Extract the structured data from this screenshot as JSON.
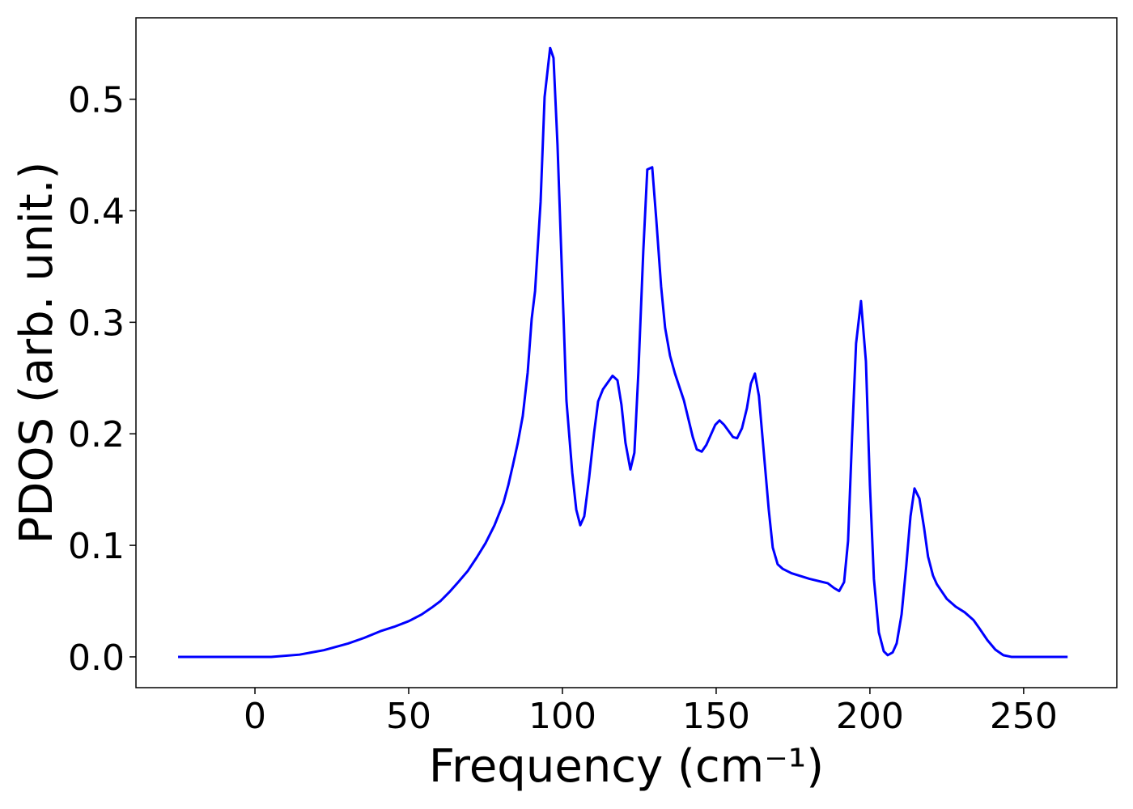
{
  "chart_data": {
    "type": "line",
    "xlabel": "Frequency (cm⁻¹)",
    "ylabel": "PDOS (arb. unit.)",
    "x": [
      -25,
      0,
      5.3,
      14.5,
      22.4,
      30.3,
      35.5,
      40.8,
      45.3,
      50,
      54.2,
      57.4,
      60.3,
      63.2,
      66.1,
      69.2,
      72.1,
      75,
      77.9,
      80.8,
      82.4,
      83.9,
      85.5,
      87.1,
      88.7,
      90,
      91.1,
      92.9,
      94.2,
      96.0,
      97.1,
      98.4,
      101.3,
      103.2,
      104.5,
      105.8,
      107.1,
      108.7,
      110.3,
      111.6,
      113.2,
      116.3,
      117.9,
      119.2,
      120.5,
      122.1,
      123.4,
      124.7,
      126.3,
      127.6,
      129.2,
      130.5,
      132.1,
      133.4,
      135,
      136.6,
      139.5,
      142.4,
      143.7,
      145.3,
      146.8,
      149.7,
      151.1,
      152.6,
      155.5,
      156.8,
      158.4,
      160,
      161.3,
      162.6,
      163.9,
      165.5,
      167.1,
      168.4,
      170,
      171.6,
      174.5,
      180.3,
      186.3,
      188.2,
      190,
      191.6,
      192.9,
      194.2,
      195.5,
      197.1,
      198.7,
      200,
      201.3,
      202.9,
      204.5,
      205.8,
      207.4,
      208.7,
      210.3,
      211.8,
      213.2,
      214.5,
      216.1,
      217.6,
      218.9,
      220.5,
      221.8,
      225,
      227.9,
      230.8,
      233.7,
      235.5,
      238.2,
      240.8,
      243.4,
      246,
      264.3
    ],
    "series": [
      {
        "name": "PDOS",
        "color": "#0000ff",
        "values": [
          0,
          0,
          0,
          0.002,
          0.006,
          0.012,
          0.017,
          0.023,
          0.027,
          0.032,
          0.038,
          0.044,
          0.05,
          0.058,
          0.067,
          0.077,
          0.089,
          0.102,
          0.118,
          0.138,
          0.154,
          0.172,
          0.192,
          0.216,
          0.255,
          0.303,
          0.328,
          0.408,
          0.502,
          0.546,
          0.537,
          0.459,
          0.23,
          0.165,
          0.132,
          0.118,
          0.126,
          0.161,
          0.201,
          0.229,
          0.24,
          0.252,
          0.248,
          0.226,
          0.192,
          0.168,
          0.183,
          0.255,
          0.364,
          0.437,
          0.439,
          0.393,
          0.332,
          0.295,
          0.27,
          0.254,
          0.23,
          0.197,
          0.186,
          0.184,
          0.19,
          0.208,
          0.212,
          0.208,
          0.197,
          0.196,
          0.205,
          0.223,
          0.245,
          0.254,
          0.234,
          0.183,
          0.132,
          0.098,
          0.083,
          0.079,
          0.075,
          0.07,
          0.066,
          0.062,
          0.059,
          0.067,
          0.104,
          0.197,
          0.281,
          0.319,
          0.265,
          0.154,
          0.07,
          0.022,
          0.005,
          0.0015,
          0.004,
          0.012,
          0.038,
          0.081,
          0.126,
          0.151,
          0.142,
          0.116,
          0.09,
          0.073,
          0.065,
          0.052,
          0.045,
          0.04,
          0.033,
          0.026,
          0.015,
          0.0065,
          0.0015,
          0,
          0
        ]
      }
    ],
    "xlim": [
      -38.7,
      280.3
    ],
    "xticks": [
      0,
      50,
      100,
      150,
      200,
      250
    ],
    "ylim": [
      -0.0276,
      0.573
    ],
    "yticks": [
      {
        "value": 0,
        "label": "0.0"
      },
      0.1,
      0.2,
      0.3,
      0.4,
      0.5
    ],
    "grid": false
  }
}
